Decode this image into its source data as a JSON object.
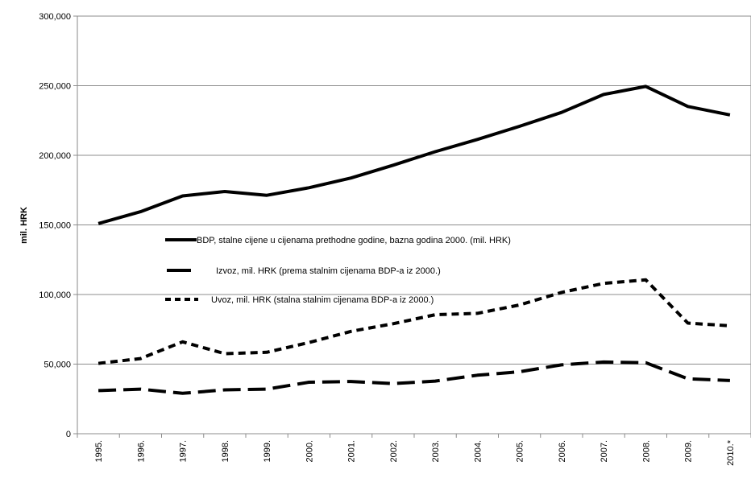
{
  "chart_data": {
    "type": "line",
    "ylabel": "mil. HRK",
    "ylim": [
      0,
      300000
    ],
    "ytick_values": [
      0,
      50000,
      100000,
      150000,
      200000,
      250000,
      300000
    ],
    "ytick_labels": [
      "0",
      "50,000",
      "100,000",
      "150,000",
      "200,000",
      "250,000",
      "300,000"
    ],
    "categories": [
      "1995.",
      "1996.",
      "1997.",
      "1998.",
      "1999.",
      "2000.",
      "2001.",
      "2002.",
      "2003.",
      "2004.",
      "2005.",
      "2006.",
      "2007.",
      "2008.",
      "2009.",
      "2010.*"
    ],
    "grid": "horizontal",
    "legend_position": "center-left",
    "series": [
      {
        "name": "BDP, stalne cijene u cijenama prethodne godine, bazna godina 2000. (mil. HRK)",
        "style": "solid",
        "color": "#000000",
        "values": [
          151000,
          159500,
          170800,
          174000,
          171300,
          176700,
          183700,
          192900,
          202600,
          211400,
          220800,
          230800,
          243700,
          249500,
          235100,
          229000
        ]
      },
      {
        "name": "Izvoz,  mil. HRK (prema stalnim cijenama BDP-a iz 2000.)",
        "style": "long-dash",
        "color": "#000000",
        "values": [
          31000,
          32000,
          29000,
          31500,
          32000,
          37000,
          37500,
          36000,
          37800,
          42000,
          44500,
          49500,
          51500,
          51000,
          39500,
          38200
        ]
      },
      {
        "name": "Uvoz,  mil. HRK (stalna stalnim cijenama BDP-a iz 2000.)",
        "style": "short-dash",
        "color": "#000000",
        "values": [
          50500,
          54000,
          66000,
          57500,
          58500,
          65500,
          73500,
          79000,
          85500,
          86500,
          92500,
          101500,
          108000,
          110500,
          79500,
          77500
        ]
      }
    ]
  }
}
